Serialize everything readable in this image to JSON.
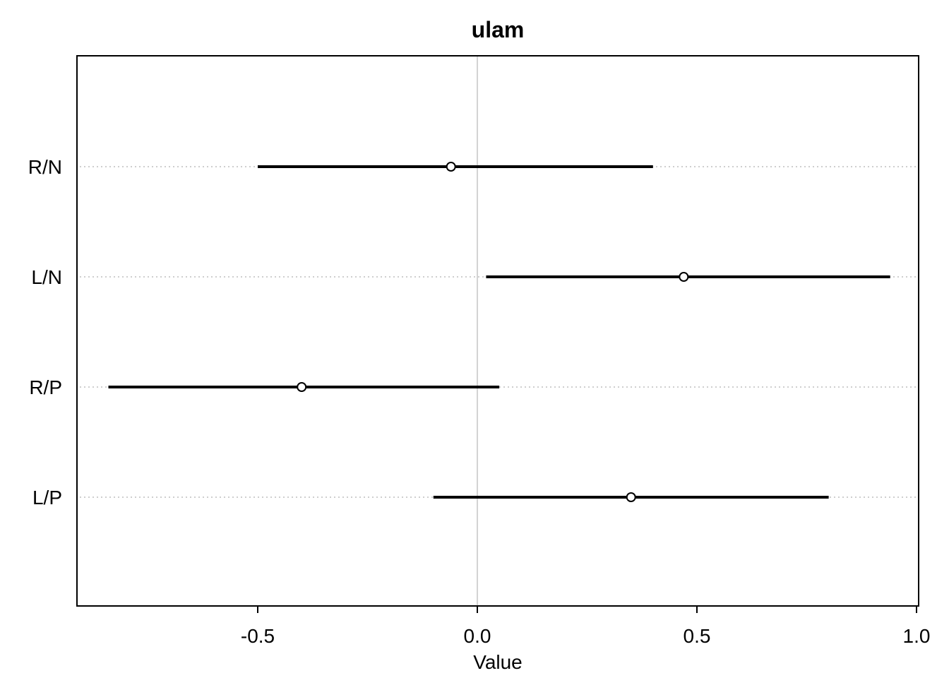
{
  "chart_data": {
    "type": "scatter",
    "title": "ulam",
    "xlabel": "Value",
    "ylabel": "",
    "xlim": [
      -0.91,
      1.0
    ],
    "xticks": [
      -0.5,
      0.0,
      0.5,
      1.0
    ],
    "xtick_labels": [
      "-0.5",
      "0.0",
      "0.5",
      "1.0"
    ],
    "reference_line_x": 0,
    "categories": [
      "R/N",
      "L/N",
      "R/P",
      "L/P"
    ],
    "series": [
      {
        "points": [
          {
            "label": "R/N",
            "mean": -0.06,
            "lower": -0.5,
            "upper": 0.4
          },
          {
            "label": "L/N",
            "mean": 0.47,
            "lower": 0.02,
            "upper": 0.94
          },
          {
            "label": "R/P",
            "mean": -0.4,
            "lower": -0.84,
            "upper": 0.05
          },
          {
            "label": "L/P",
            "mean": 0.35,
            "lower": -0.1,
            "upper": 0.8
          }
        ]
      }
    ],
    "grid": "horizontal dotted per row",
    "colors": {
      "line": "#000000",
      "grid": "#bebebe",
      "refline": "#d3d3d3"
    }
  }
}
